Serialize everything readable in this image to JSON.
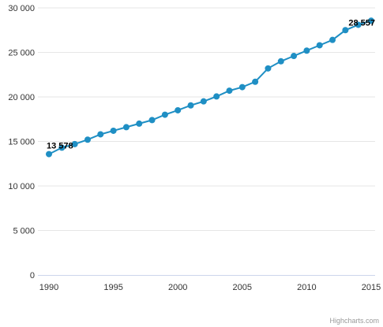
{
  "chart_data": {
    "type": "line",
    "title": "",
    "xlabel": "",
    "ylabel": "",
    "x": [
      1990,
      1991,
      1992,
      1993,
      1994,
      1995,
      1996,
      1997,
      1998,
      1999,
      2000,
      2001,
      2002,
      2003,
      2004,
      2005,
      2006,
      2007,
      2008,
      2009,
      2010,
      2011,
      2012,
      2013,
      2014,
      2015
    ],
    "series": [
      {
        "values": [
          13578,
          14300,
          14700,
          15200,
          15800,
          16200,
          16600,
          17000,
          17400,
          18000,
          18500,
          19050,
          19500,
          20050,
          20700,
          21100,
          21700,
          23200,
          24000,
          24600,
          25200,
          25800,
          26400,
          27500,
          28100,
          28557
        ],
        "color": "#1f8fc4"
      }
    ],
    "xlim": [
      1990,
      2015
    ],
    "ylim": [
      0,
      30000
    ],
    "x_ticks": [
      1990,
      1995,
      2000,
      2005,
      2010,
      2015
    ],
    "x_tick_labels": [
      "1990",
      "1995",
      "2000",
      "2005",
      "2010",
      "2015"
    ],
    "y_ticks": [
      0,
      5000,
      10000,
      15000,
      20000,
      25000,
      30000
    ],
    "y_tick_labels": [
      "0",
      "5 000",
      "10 000",
      "15 000",
      "20 000",
      "25 000",
      "30 000"
    ],
    "data_labels": [
      {
        "index": 0,
        "text": "13 578"
      },
      {
        "index": 25,
        "text": "28 557"
      }
    ],
    "grid": true,
    "legend": "none"
  },
  "credit": "Highcharts.com",
  "colors": {
    "grid": "#e6e6e6",
    "axis_line": "#ccd6eb",
    "line": "#1f8fc4"
  }
}
